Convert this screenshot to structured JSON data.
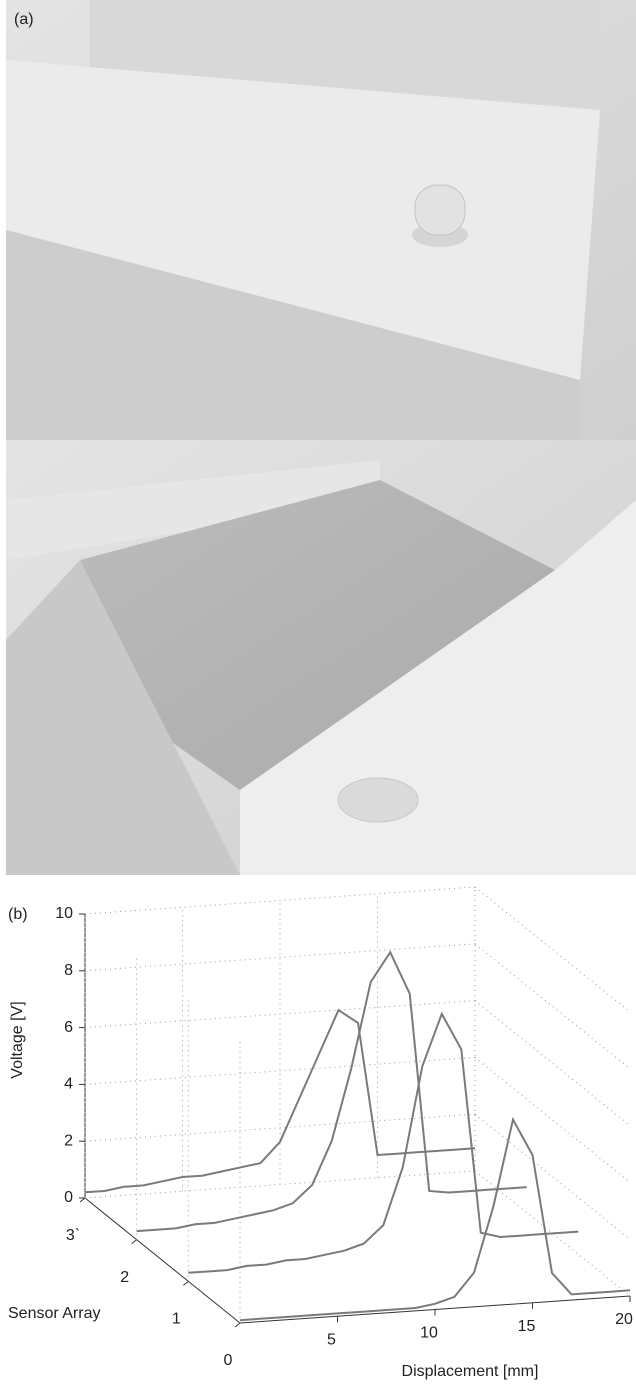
{
  "figure": {
    "panel_a_label": "(a)",
    "panel_b_label": "(b)"
  },
  "chart_data": {
    "type": "line3d",
    "xlabel": "Displacement [mm]",
    "ylabel": "Sensor Array",
    "zlabel": "Voltage [V]",
    "x": [
      0,
      1,
      2,
      3,
      4,
      5,
      6,
      7,
      8,
      9,
      10,
      11,
      12,
      13,
      14,
      15,
      16,
      17,
      18,
      19,
      20
    ],
    "series": [
      {
        "sensor": 0,
        "color": "#7a7a7a",
        "values": [
          0.1,
          0.1,
          0.1,
          0.1,
          0.1,
          0.1,
          0.1,
          0.1,
          0.1,
          0.1,
          0.2,
          0.4,
          1.2,
          3.5,
          6.5,
          5.2,
          1.0,
          0.2,
          0.2,
          0.2,
          0.2
        ]
      },
      {
        "sensor": 1,
        "color": "#7a7a7a",
        "values": [
          0.3,
          0.3,
          0.3,
          0.4,
          0.4,
          0.5,
          0.5,
          0.6,
          0.7,
          0.9,
          1.5,
          3.5,
          7.0,
          8.8,
          7.5,
          1.0,
          0.8,
          0.8,
          0.8,
          0.8,
          0.8
        ]
      },
      {
        "sensor": 2,
        "color": "#7a7a7a",
        "values": [
          0.3,
          0.3,
          0.3,
          0.4,
          0.4,
          0.5,
          0.6,
          0.7,
          0.9,
          1.5,
          3.0,
          5.5,
          8.5,
          9.5,
          8.0,
          1.0,
          0.9,
          0.9,
          0.9,
          0.9,
          0.9
        ]
      },
      {
        "sensor": 3,
        "color": "#7a7a7a",
        "values": [
          0.2,
          0.2,
          0.3,
          0.3,
          0.4,
          0.5,
          0.5,
          0.6,
          0.7,
          0.8,
          1.5,
          3.0,
          4.5,
          6.0,
          5.5,
          0.8,
          0.8,
          0.8,
          0.8,
          0.8,
          0.8
        ]
      }
    ],
    "xlim": [
      0,
      20
    ],
    "xticks": [
      5,
      10,
      15,
      20
    ],
    "ylim": [
      0,
      3
    ],
    "yticks": [
      0,
      1,
      2,
      {
        "value": 3,
        "label": "3`"
      }
    ],
    "zlim": [
      0,
      10
    ],
    "zticks": [
      0,
      2,
      4,
      6,
      8,
      10
    ],
    "grid": true
  }
}
